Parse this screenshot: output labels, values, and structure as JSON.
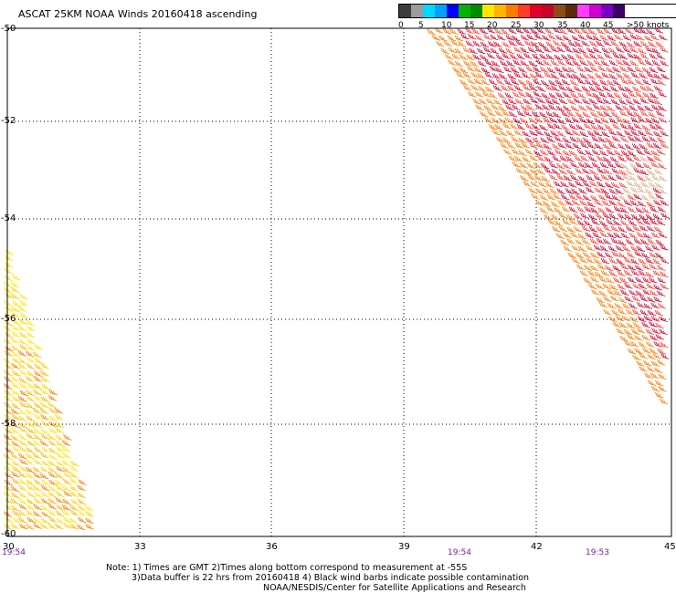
{
  "title": "ASCAT 25KM NOAA Winds 20160418 ascending",
  "scale": {
    "colors": [
      "#3c3c3c",
      "#9b9b9b",
      "#00d8ff",
      "#00a2ff",
      "#0000ff",
      "#00b400",
      "#008c00",
      "#ffe500",
      "#ffb400",
      "#ff7a00",
      "#ff3b2a",
      "#e0002a",
      "#c8002a",
      "#8c4a1a",
      "#5a2a0a",
      "#ff3cff",
      "#d000d0",
      "#7a00c8",
      "#3c0064"
    ],
    "labels": [
      "0",
      "5",
      "10",
      "15",
      "20",
      "25",
      "30",
      "35",
      "40",
      "45",
      ">50 knots"
    ]
  },
  "axes": {
    "lat_labels": [
      "-50",
      "-52",
      "-54",
      "-56",
      "-58",
      "-60"
    ],
    "lon_labels": [
      "30",
      "33",
      "36",
      "39",
      "42",
      "45"
    ]
  },
  "time_labels": [
    "19:54",
    "19:54",
    "19:53"
  ],
  "notes": [
    "Note: 1) Times are GMT 2)Times along bottom correspond to measurement at -55S",
    "3)Data buffer is 22 hrs from 20160418 4) Black wind barbs indicate possible contamination",
    "NOAA/NESDIS/Center for Satellite Applications and Research"
  ],
  "swaths": {
    "east_colors": [
      "#e0002a",
      "#ff3b2a",
      "#c8002a",
      "#ff7a00",
      "#b85a1a"
    ],
    "west_colors": [
      "#ffe500",
      "#ffb400",
      "#ff7a00",
      "#ffd000"
    ]
  }
}
